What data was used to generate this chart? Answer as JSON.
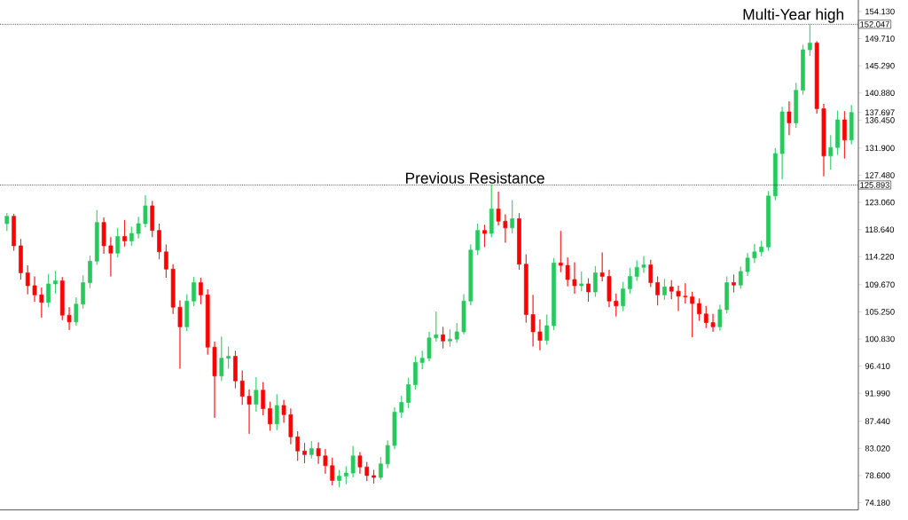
{
  "chart_data": {
    "type": "candlestick",
    "categories": [
      null,
      null,
      null,
      null,
      null,
      null,
      null,
      null,
      null,
      null,
      null,
      null,
      null,
      null,
      null,
      null,
      null,
      null,
      null,
      null,
      null,
      null,
      null,
      null,
      null,
      null,
      null,
      null,
      null,
      null,
      null,
      null,
      null,
      null,
      null,
      null,
      null,
      null,
      null,
      null,
      null,
      null,
      null,
      null,
      null,
      null,
      null,
      null,
      null,
      null,
      null,
      null,
      null,
      null,
      null,
      null,
      null,
      null,
      null,
      null,
      null,
      null,
      null,
      null,
      null,
      null,
      null,
      null,
      null,
      null,
      null,
      null,
      null,
      null,
      null,
      null,
      null,
      null,
      null,
      null,
      null,
      null,
      null,
      null,
      null,
      null,
      null,
      null,
      null,
      null,
      null,
      null,
      null,
      null,
      null,
      null,
      null,
      null,
      null,
      null,
      null,
      null,
      null,
      null,
      null,
      null,
      null,
      null,
      null,
      null,
      null,
      null,
      null,
      null,
      null,
      null,
      null,
      null,
      null,
      null,
      null,
      null,
      null
    ],
    "ohlc": [
      [
        119.6,
        121.3,
        118.4,
        120.8
      ],
      [
        120.8,
        121.2,
        115.2,
        116.0
      ],
      [
        116.0,
        117.1,
        110.5,
        111.6
      ],
      [
        111.6,
        112.8,
        108.1,
        109.5
      ],
      [
        109.5,
        111.0,
        106.9,
        108.0
      ],
      [
        108.0,
        109.2,
        104.3,
        106.8
      ],
      [
        106.8,
        111.4,
        106.0,
        109.8
      ],
      [
        109.8,
        111.9,
        108.2,
        110.3
      ],
      [
        110.3,
        110.9,
        103.9,
        104.7
      ],
      [
        104.7,
        106.0,
        102.3,
        103.6
      ],
      [
        103.6,
        107.6,
        103.0,
        106.5
      ],
      [
        106.5,
        111.2,
        105.8,
        110.0
      ],
      [
        110.0,
        114.4,
        109.1,
        113.5
      ],
      [
        113.5,
        121.8,
        112.9,
        119.8
      ],
      [
        119.8,
        120.6,
        114.7,
        116.0
      ],
      [
        116.0,
        117.4,
        111.0,
        114.8
      ],
      [
        114.8,
        118.9,
        114.1,
        117.5
      ],
      [
        117.5,
        120.2,
        115.9,
        116.8
      ],
      [
        116.8,
        119.1,
        116.0,
        118.0
      ],
      [
        118.0,
        120.7,
        117.2,
        119.6
      ],
      [
        119.6,
        124.2,
        119.0,
        122.5
      ],
      [
        122.5,
        123.3,
        117.4,
        118.5
      ],
      [
        118.5,
        119.6,
        113.8,
        115.0
      ],
      [
        115.0,
        116.2,
        110.8,
        112.2
      ],
      [
        112.2,
        113.0,
        104.9,
        106.0
      ],
      [
        106.0,
        107.1,
        96.0,
        102.8
      ],
      [
        102.8,
        108.1,
        102.1,
        107.0
      ],
      [
        107.0,
        110.9,
        106.2,
        110.0
      ],
      [
        110.0,
        110.8,
        106.5,
        108.0
      ],
      [
        108.0,
        108.9,
        98.3,
        99.5
      ],
      [
        99.5,
        100.4,
        88.0,
        94.8
      ],
      [
        94.8,
        101.2,
        94.0,
        97.7
      ],
      [
        97.7,
        99.6,
        96.0,
        98.0
      ],
      [
        98.0,
        98.9,
        92.8,
        94.0
      ],
      [
        94.0,
        95.7,
        90.1,
        91.5
      ],
      [
        91.5,
        92.6,
        85.4,
        90.2
      ],
      [
        90.2,
        94.6,
        89.0,
        92.5
      ],
      [
        92.5,
        93.8,
        88.4,
        89.5
      ],
      [
        89.5,
        90.6,
        85.9,
        87.0
      ],
      [
        87.0,
        91.8,
        86.0,
        90.0
      ],
      [
        90.0,
        90.9,
        87.2,
        88.5
      ],
      [
        88.5,
        89.5,
        83.7,
        84.9
      ],
      [
        84.9,
        85.8,
        81.0,
        82.6
      ],
      [
        82.6,
        83.9,
        80.6,
        82.0
      ],
      [
        82.0,
        84.2,
        81.4,
        83.0
      ],
      [
        83.0,
        84.0,
        80.5,
        81.8
      ],
      [
        81.8,
        82.9,
        78.9,
        80.2
      ],
      [
        80.2,
        81.5,
        77.0,
        77.8
      ],
      [
        77.8,
        79.5,
        76.7,
        78.5
      ],
      [
        78.5,
        80.1,
        77.2,
        79.0
      ],
      [
        79.0,
        83.4,
        78.3,
        81.8
      ],
      [
        81.8,
        82.4,
        78.9,
        80.0
      ],
      [
        80.0,
        80.8,
        77.7,
        78.6
      ],
      [
        78.6,
        79.5,
        77.3,
        78.3
      ],
      [
        78.3,
        81.6,
        77.9,
        80.5
      ],
      [
        80.5,
        84.3,
        79.8,
        83.5
      ],
      [
        83.5,
        89.7,
        82.9,
        88.9
      ],
      [
        88.9,
        91.6,
        88.0,
        90.5
      ],
      [
        90.5,
        94.5,
        89.6,
        93.4
      ],
      [
        93.4,
        98.0,
        92.6,
        97.0
      ],
      [
        97.0,
        98.9,
        95.9,
        97.7
      ],
      [
        97.7,
        102.0,
        97.2,
        101.0
      ],
      [
        101.0,
        105.3,
        100.4,
        101.5
      ],
      [
        101.5,
        102.8,
        99.3,
        100.5
      ],
      [
        100.5,
        102.4,
        99.6,
        100.8
      ],
      [
        100.8,
        103.4,
        100.2,
        102.0
      ],
      [
        102.0,
        108.1,
        101.6,
        107.0
      ],
      [
        107.0,
        116.2,
        106.3,
        115.3
      ],
      [
        115.3,
        119.6,
        114.5,
        118.5
      ],
      [
        118.5,
        119.4,
        115.8,
        118.0
      ],
      [
        118.0,
        125.9,
        117.4,
        122.0
      ],
      [
        122.0,
        124.8,
        119.3,
        120.0
      ],
      [
        120.0,
        121.1,
        116.5,
        118.9
      ],
      [
        118.9,
        123.4,
        118.0,
        120.4
      ],
      [
        120.4,
        121.3,
        112.1,
        113.0
      ],
      [
        113.0,
        114.6,
        103.5,
        104.8
      ],
      [
        104.8,
        108.0,
        99.6,
        102.0
      ],
      [
        102.0,
        104.0,
        99.0,
        100.6
      ],
      [
        100.6,
        104.8,
        99.9,
        103.0
      ],
      [
        103.0,
        114.0,
        102.3,
        113.2
      ],
      [
        113.2,
        118.4,
        111.7,
        112.8
      ],
      [
        112.8,
        114.1,
        109.4,
        110.5
      ],
      [
        110.5,
        113.3,
        108.2,
        109.5
      ],
      [
        109.5,
        111.8,
        108.6,
        109.8
      ],
      [
        109.8,
        110.7,
        106.9,
        108.5
      ],
      [
        108.5,
        112.7,
        107.7,
        111.6
      ],
      [
        111.6,
        114.9,
        110.2,
        111.0
      ],
      [
        111.0,
        112.1,
        106.0,
        107.0
      ],
      [
        107.0,
        108.2,
        104.5,
        106.2
      ],
      [
        106.2,
        110.1,
        105.4,
        109.0
      ],
      [
        109.0,
        112.4,
        108.2,
        111.0
      ],
      [
        111.0,
        113.6,
        110.3,
        112.5
      ],
      [
        112.5,
        114.3,
        111.6,
        112.9
      ],
      [
        112.9,
        113.7,
        109.3,
        110.0
      ],
      [
        110.0,
        111.0,
        106.3,
        108.0
      ],
      [
        108.0,
        110.6,
        107.2,
        109.3
      ],
      [
        109.3,
        110.4,
        107.3,
        108.6
      ],
      [
        108.6,
        109.5,
        105.4,
        107.8
      ],
      [
        107.8,
        109.9,
        106.6,
        107.7
      ],
      [
        107.7,
        108.5,
        101.1,
        106.6
      ],
      [
        106.6,
        107.4,
        103.8,
        104.9
      ],
      [
        104.9,
        106.2,
        102.6,
        103.5
      ],
      [
        103.5,
        104.9,
        102.0,
        102.8
      ],
      [
        102.8,
        106.4,
        102.2,
        105.6
      ],
      [
        105.6,
        111.0,
        105.0,
        110.0
      ],
      [
        110.0,
        111.3,
        108.4,
        109.6
      ],
      [
        109.6,
        112.6,
        109.0,
        111.8
      ],
      [
        111.8,
        114.8,
        111.1,
        114.0
      ],
      [
        114.0,
        116.3,
        113.2,
        115.0
      ],
      [
        115.0,
        116.8,
        114.3,
        115.8
      ],
      [
        115.8,
        124.9,
        115.2,
        124.1
      ],
      [
        124.1,
        131.9,
        123.4,
        131.0
      ],
      [
        131.0,
        138.6,
        126.8,
        137.8
      ],
      [
        137.8,
        139.5,
        134.0,
        136.0
      ],
      [
        136.0,
        142.5,
        135.2,
        141.3
      ],
      [
        141.3,
        148.7,
        140.6,
        147.9
      ],
      [
        147.9,
        152.0,
        146.9,
        149.0
      ],
      [
        149.0,
        149.3,
        137.5,
        138.3
      ],
      [
        138.3,
        139.1,
        127.3,
        130.6
      ],
      [
        130.6,
        134.0,
        128.4,
        132.0
      ],
      [
        132.0,
        138.0,
        130.8,
        136.5
      ],
      [
        136.5,
        137.9,
        130.2,
        133.2
      ],
      [
        133.2,
        138.9,
        132.5,
        137.7
      ]
    ],
    "ylim": [
      73.0,
      156.0
    ],
    "yticks": [
      {
        "value": 74.18,
        "label": "74.180"
      },
      {
        "value": 78.6,
        "label": "78.600"
      },
      {
        "value": 83.02,
        "label": "83.020"
      },
      {
        "value": 87.44,
        "label": "87.440"
      },
      {
        "value": 91.99,
        "label": "91.990"
      },
      {
        "value": 96.41,
        "label": "96.410"
      },
      {
        "value": 100.83,
        "label": "100.830"
      },
      {
        "value": 105.25,
        "label": "105.250"
      },
      {
        "value": 109.67,
        "label": "109.670"
      },
      {
        "value": 114.22,
        "label": "114.220"
      },
      {
        "value": 118.64,
        "label": "118.640"
      },
      {
        "value": 123.06,
        "label": "123.060"
      },
      {
        "value": 127.48,
        "label": "127.480"
      },
      {
        "value": 131.9,
        "label": "131.900"
      },
      {
        "value": 136.45,
        "label": "136.450"
      },
      {
        "value": 137.697,
        "label": "137.697"
      },
      {
        "value": 140.88,
        "label": "140.880"
      },
      {
        "value": 145.29,
        "label": "145.290"
      },
      {
        "value": 149.71,
        "label": "149.710"
      },
      {
        "value": 154.13,
        "label": "154.130"
      }
    ],
    "ref_lines": [
      {
        "axis": "y",
        "value": 152.047,
        "label": "152.047",
        "line_style": "dotted",
        "color": "#000000"
      },
      {
        "axis": "y",
        "value": 125.893,
        "label": "125.893",
        "line_style": "dotted",
        "color": "#000000"
      }
    ],
    "annotations": [
      {
        "text": "Multi-Year high",
        "y": 152.047
      },
      {
        "text": "Previous Resistance",
        "y": 125.893
      }
    ]
  }
}
